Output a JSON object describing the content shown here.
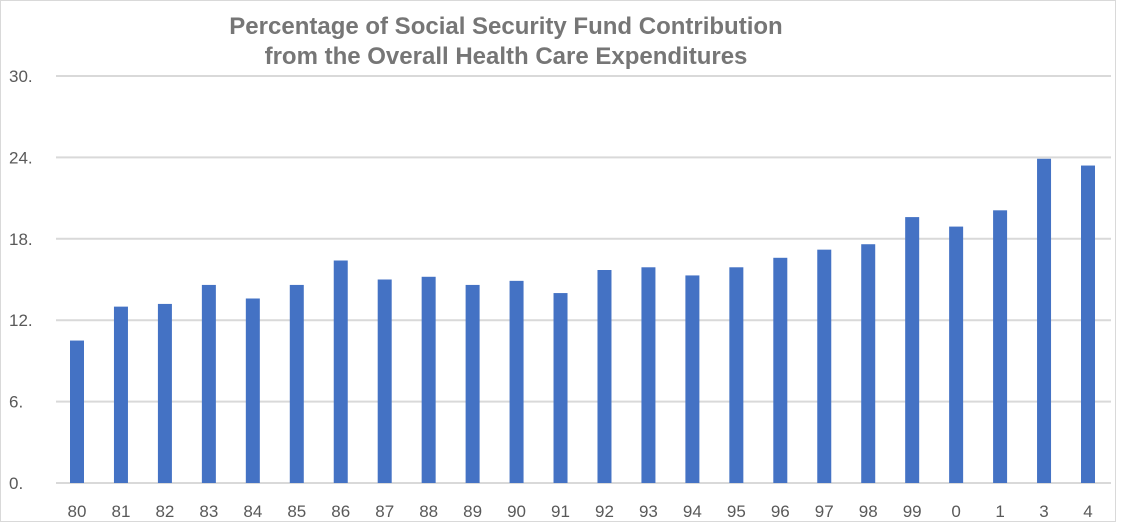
{
  "chart_data": {
    "type": "bar",
    "title": "Percentage of Social Security Fund Contribution",
    "subtitle": "from the Overall Health Care Expenditures",
    "xlabel": "",
    "ylabel": "",
    "categories": [
      "80",
      "81",
      "82",
      "83",
      "84",
      "85",
      "86",
      "87",
      "88",
      "89",
      "90",
      "91",
      "92",
      "93",
      "94",
      "95",
      "96",
      "97",
      "98",
      "99",
      "0",
      "1",
      "3",
      "4"
    ],
    "values": [
      10.5,
      13.0,
      13.2,
      14.6,
      13.6,
      14.6,
      16.4,
      15.0,
      15.2,
      14.6,
      14.9,
      14.0,
      15.7,
      15.9,
      15.3,
      15.9,
      16.6,
      17.2,
      17.6,
      19.6,
      18.9,
      20.1,
      23.9,
      23.4
    ],
    "yticks": [
      {
        "value": 0,
        "label": "0."
      },
      {
        "value": 6,
        "label": "6."
      },
      {
        "value": 12,
        "label": "12."
      },
      {
        "value": 18,
        "label": "18."
      },
      {
        "value": 24,
        "label": "24."
      },
      {
        "value": 30,
        "label": "30."
      }
    ],
    "ylim": [
      0,
      30
    ],
    "grid": true,
    "legend": "none",
    "colors": {
      "bar": "#4472c4",
      "grid": "#d9d9d9",
      "title": "#767676",
      "tick_label": "#595959"
    }
  }
}
